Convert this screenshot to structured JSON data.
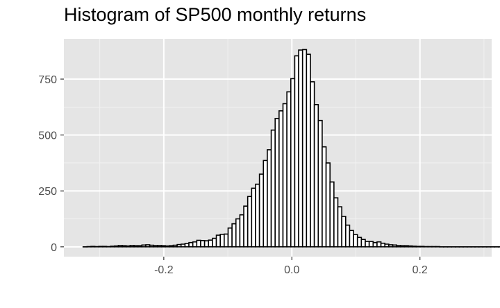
{
  "chart_data": {
    "type": "bar",
    "title": "Histogram of SP500 monthly returns",
    "xlabel": "",
    "ylabel": "",
    "xlim": [
      -0.356,
      0.312
    ],
    "ylim": [
      -44,
      930
    ],
    "x_ticks": [
      -0.2,
      0.0,
      0.2
    ],
    "x_tick_labels": [
      "-0.2",
      "0.0",
      "0.2"
    ],
    "y_ticks": [
      0,
      250,
      500,
      750
    ],
    "y_tick_labels": [
      "0",
      "250",
      "500",
      "750"
    ],
    "grid": true,
    "panel_background": "#e5e5e5",
    "bar_fill": "#ffffff",
    "bar_outline": "#000000",
    "bin_start": -0.326,
    "bin_width": 0.00612,
    "values": [
      0,
      1,
      2,
      1,
      2,
      2,
      1,
      3,
      4,
      6,
      5,
      4,
      6,
      5,
      5,
      8,
      9,
      7,
      6,
      6,
      5,
      4,
      5,
      7,
      10,
      12,
      15,
      19,
      22,
      29,
      28,
      27,
      30,
      38,
      52,
      56,
      57,
      84,
      103,
      125,
      143,
      182,
      225,
      262,
      280,
      325,
      386,
      434,
      522,
      574,
      608,
      640,
      693,
      752,
      854,
      880,
      882,
      861,
      738,
      636,
      565,
      447,
      375,
      290,
      219,
      179,
      136,
      97,
      73,
      55,
      42,
      33,
      24,
      24,
      19,
      22,
      16,
      12,
      9,
      8,
      6,
      5,
      5,
      4,
      3,
      2,
      2,
      1,
      1,
      1,
      1,
      0,
      0,
      0,
      0,
      0,
      0,
      0,
      0,
      0,
      0,
      0,
      0,
      0,
      0,
      0,
      0,
      0,
      0
    ]
  }
}
